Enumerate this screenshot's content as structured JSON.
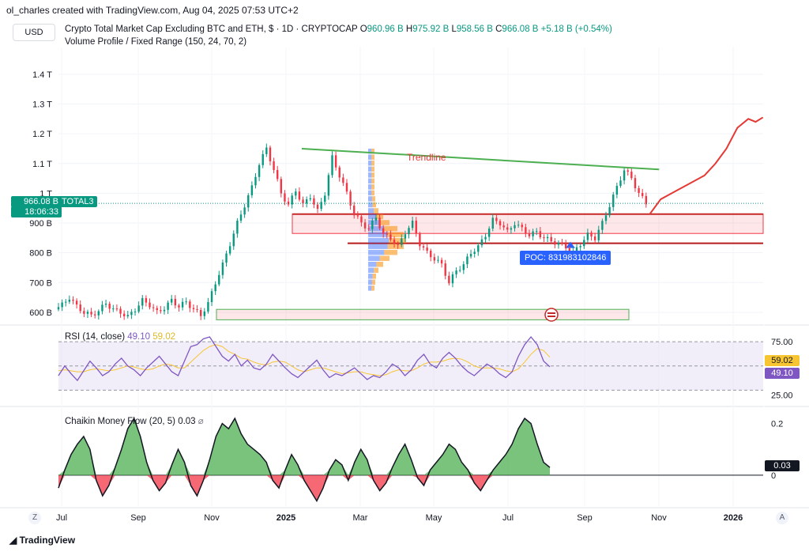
{
  "attribution": "ol_charles created with TradingView.com, Aug 04, 2025 07:53 UTC+2",
  "currency_button": "USD",
  "legend": {
    "symbol": "Crypto Total Market Cap Excluding BTC and ETH, $ · 1D · CRYPTOCAP",
    "o_label": "O",
    "o": "960.96 B",
    "h_label": "H",
    "h": "975.92 B",
    "l_label": "L",
    "l": "958.56 B",
    "c_label": "C",
    "c": "966.08 B",
    "change": "+5.18 B (+0.54%)"
  },
  "volume_profile_title": "Volume Profile / Fixed Range (150, 24, 70, 2)",
  "price_tag": {
    "price": "966.08 B",
    "countdown": "18:06:33",
    "symbol": "TOTAL3"
  },
  "annotations": {
    "trendline": "Trendline",
    "poc": "POC: 831983102846"
  },
  "rsi": {
    "title": "RSI (14, close)",
    "value": "49.10",
    "ma": "59.02"
  },
  "cmf": {
    "title": "Chaikin Money Flow (20, 5)",
    "value": "0.03",
    "hide_icon": "⌀"
  },
  "footer_brand": "TradingView",
  "corner_buttons": {
    "left": "Z",
    "right": "A"
  },
  "colors": {
    "up": "#089981",
    "down": "#f23645",
    "rsi": "#7e57c2",
    "rsi_ma": "#f7c531",
    "trend": "#4caf50",
    "projection": "#e53935",
    "poc": "#2962ff",
    "cmf_pos": "#4caf50",
    "cmf_neg": "#f23645"
  },
  "chart_data": [
    {
      "type": "candlestick",
      "x_ticks": [
        "Jul",
        "Sep",
        "Nov",
        "2025",
        "Mar",
        "May",
        "Jul",
        "Sep",
        "Nov",
        "2026"
      ],
      "y_ticks": [
        "600 B",
        "700 B",
        "800 B",
        "900 B",
        "1 T",
        "1.1 T",
        "1.2 T",
        "1.3 T",
        "1.4 T"
      ],
      "y_tick_values": [
        600,
        700,
        800,
        900,
        1000,
        1100,
        1200,
        1300,
        1400
      ],
      "ylim": [
        560,
        1490
      ],
      "close_path_B": [
        [
          0,
          610
        ],
        [
          2,
          625
        ],
        [
          4,
          650
        ],
        [
          6,
          620
        ],
        [
          8,
          600
        ],
        [
          10,
          590
        ],
        [
          12,
          605
        ],
        [
          14,
          630
        ],
        [
          16,
          610
        ],
        [
          18,
          600
        ],
        [
          20,
          585
        ],
        [
          22,
          610
        ],
        [
          24,
          640
        ],
        [
          26,
          625
        ],
        [
          28,
          600
        ],
        [
          30,
          615
        ],
        [
          32,
          640
        ],
        [
          34,
          620
        ],
        [
          36,
          635
        ],
        [
          38,
          610
        ],
        [
          40,
          590
        ],
        [
          42,
          630
        ],
        [
          44,
          700
        ],
        [
          46,
          760
        ],
        [
          48,
          830
        ],
        [
          50,
          900
        ],
        [
          52,
          960
        ],
        [
          54,
          1020
        ],
        [
          56,
          1100
        ],
        [
          58,
          1150
        ],
        [
          60,
          1080
        ],
        [
          62,
          1000
        ],
        [
          64,
          960
        ],
        [
          66,
          1010
        ],
        [
          68,
          960
        ],
        [
          70,
          990
        ],
        [
          72,
          940
        ],
        [
          74,
          1000
        ],
        [
          76,
          1120
        ],
        [
          78,
          1060
        ],
        [
          80,
          1000
        ],
        [
          82,
          930
        ],
        [
          84,
          900
        ],
        [
          86,
          880
        ],
        [
          88,
          920
        ],
        [
          90,
          860
        ],
        [
          92,
          850
        ],
        [
          94,
          820
        ],
        [
          96,
          870
        ],
        [
          98,
          900
        ],
        [
          100,
          830
        ],
        [
          102,
          800
        ],
        [
          104,
          780
        ],
        [
          106,
          760
        ],
        [
          108,
          700
        ],
        [
          110,
          740
        ],
        [
          112,
          760
        ],
        [
          114,
          800
        ],
        [
          116,
          820
        ],
        [
          118,
          860
        ],
        [
          120,
          910
        ],
        [
          122,
          900
        ],
        [
          124,
          870
        ],
        [
          126,
          900
        ],
        [
          128,
          880
        ],
        [
          130,
          860
        ],
        [
          132,
          870
        ],
        [
          134,
          850
        ],
        [
          136,
          840
        ],
        [
          138,
          830
        ],
        [
          140,
          820
        ],
        [
          142,
          800
        ],
        [
          144,
          830
        ],
        [
          146,
          860
        ],
        [
          148,
          850
        ],
        [
          150,
          900
        ],
        [
          152,
          960
        ],
        [
          154,
          1020
        ],
        [
          156,
          1080
        ],
        [
          158,
          1050
        ],
        [
          160,
          1000
        ],
        [
          162,
          966
        ]
      ],
      "projection_B": [
        [
          162,
          930
        ],
        [
          165,
          980
        ],
        [
          168,
          1000
        ],
        [
          171,
          1020
        ],
        [
          174,
          1040
        ],
        [
          177,
          1060
        ],
        [
          180,
          1100
        ],
        [
          183,
          1150
        ],
        [
          186,
          1220
        ],
        [
          189,
          1250
        ],
        [
          191,
          1240
        ],
        [
          193,
          1255
        ]
      ],
      "trendline_B": [
        [
          58,
          1150
        ],
        [
          165,
          1080
        ]
      ],
      "support_zones_B": [
        [
          930,
          865
        ],
        [
          610,
          575
        ]
      ],
      "poc_level_B": 832,
      "last_price_B": 966.08
    },
    {
      "type": "line",
      "name": "RSI (14, close)",
      "levels": [
        75,
        50,
        25
      ],
      "y_tick_labels": [
        "75.00",
        "25.00"
      ],
      "values": [
        40,
        50,
        42,
        35,
        45,
        55,
        48,
        40,
        44,
        52,
        58,
        50,
        46,
        40,
        48,
        54,
        60,
        52,
        44,
        40,
        55,
        70,
        72,
        78,
        80,
        70,
        60,
        55,
        62,
        50,
        56,
        48,
        46,
        52,
        62,
        55,
        48,
        42,
        38,
        44,
        50,
        56,
        46,
        38,
        42,
        40,
        44,
        48,
        42,
        36,
        40,
        38,
        44,
        52,
        48,
        40,
        46,
        56,
        62,
        52,
        48,
        58,
        64,
        58,
        50,
        44,
        40,
        46,
        52,
        48,
        42,
        38,
        44,
        60,
        72,
        80,
        72,
        55,
        49.1
      ],
      "ma_values": [
        45,
        46,
        45,
        44,
        44,
        46,
        47,
        46,
        45,
        46,
        48,
        50,
        49,
        47,
        46,
        47,
        50,
        52,
        51,
        48,
        48,
        54,
        60,
        66,
        70,
        72,
        70,
        65,
        62,
        58,
        57,
        54,
        52,
        51,
        54,
        55,
        54,
        50,
        46,
        44,
        46,
        48,
        48,
        46,
        44,
        42,
        43,
        44,
        44,
        42,
        41,
        40,
        41,
        44,
        46,
        45,
        45,
        48,
        52,
        54,
        54,
        55,
        57,
        58,
        57,
        54,
        50,
        48,
        48,
        48,
        47,
        45,
        44,
        47,
        54,
        62,
        68,
        66,
        59.02
      ]
    },
    {
      "type": "area",
      "name": "Chaikin Money Flow (20, 5)",
      "y_tick_labels": [
        "0.2",
        "0"
      ],
      "ylim": [
        -0.12,
        0.26
      ],
      "values": [
        -0.05,
        0.02,
        0.08,
        0.12,
        0.15,
        0.1,
        -0.02,
        -0.08,
        -0.04,
        0.03,
        0.1,
        0.18,
        0.22,
        0.15,
        0.05,
        -0.02,
        -0.06,
        -0.03,
        0.04,
        0.1,
        0.05,
        -0.04,
        -0.08,
        -0.02,
        0.06,
        0.15,
        0.2,
        0.18,
        0.22,
        0.16,
        0.12,
        0.1,
        0.08,
        0.05,
        -0.02,
        -0.05,
        0.02,
        0.08,
        0.04,
        -0.02,
        -0.06,
        -0.1,
        -0.05,
        0.02,
        0.06,
        0.04,
        -0.02,
        0.05,
        0.1,
        0.06,
        -0.02,
        -0.06,
        -0.03,
        0.03,
        0.08,
        0.12,
        0.06,
        -0.01,
        -0.04,
        0.02,
        0.05,
        0.08,
        0.12,
        0.1,
        0.05,
        0.02,
        -0.03,
        -0.06,
        -0.02,
        0.02,
        0.05,
        0.08,
        0.12,
        0.18,
        0.22,
        0.2,
        0.12,
        0.05,
        0.03
      ]
    }
  ]
}
